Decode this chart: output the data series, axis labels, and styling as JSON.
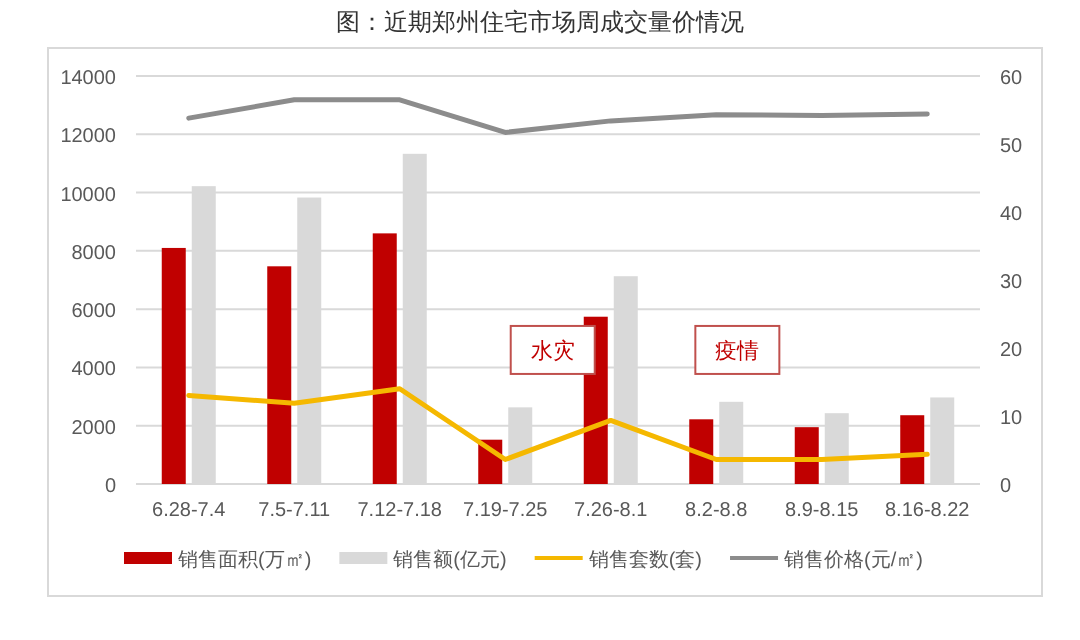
{
  "chart_data": {
    "type": "bar",
    "title": "图：近期郑州住宅市场周成交量价情况",
    "categories": [
      "6.28-7.4",
      "7.5-7.11",
      "7.12-7.18",
      "7.19-7.25",
      "7.26-8.1",
      "8.2-8.8",
      "8.9-8.15",
      "8.16-8.22"
    ],
    "series": [
      {
        "name": "销售面积(万㎡)",
        "color": "#c00000",
        "values": [
          8100,
          7470,
          8600,
          1520,
          5740,
          2220,
          1950,
          2360
        ]
      },
      {
        "name": "销售额(亿元)",
        "color": "#d9d9d9",
        "values": [
          10220,
          9830,
          11330,
          2630,
          7130,
          2820,
          2430,
          2970
        ]
      },
      {
        "name": "销售套数(套)",
        "type": "line",
        "color": "#f5b800",
        "values": [
          3040,
          2770,
          3270,
          840,
          2180,
          840,
          840,
          1020
        ]
      },
      {
        "name": "销售价格(元/㎡)",
        "type": "line",
        "axis": "y2",
        "color": "#8c8c8c",
        "values": [
          53.8,
          56.5,
          56.5,
          51.7,
          53.4,
          54.3,
          54.2,
          54.4
        ]
      }
    ],
    "ylim": [
      0,
      14000
    ],
    "yticks": [
      0,
      2000,
      4000,
      6000,
      8000,
      10000,
      12000,
      14000
    ],
    "y2lim": [
      0,
      60
    ],
    "y2ticks": [
      0,
      10,
      20,
      30,
      40,
      50,
      60
    ],
    "annotations": [
      "水灾",
      "疫情"
    ],
    "grid": "y",
    "legend": "bottom",
    "marker": "none",
    "line_style": "solid"
  }
}
